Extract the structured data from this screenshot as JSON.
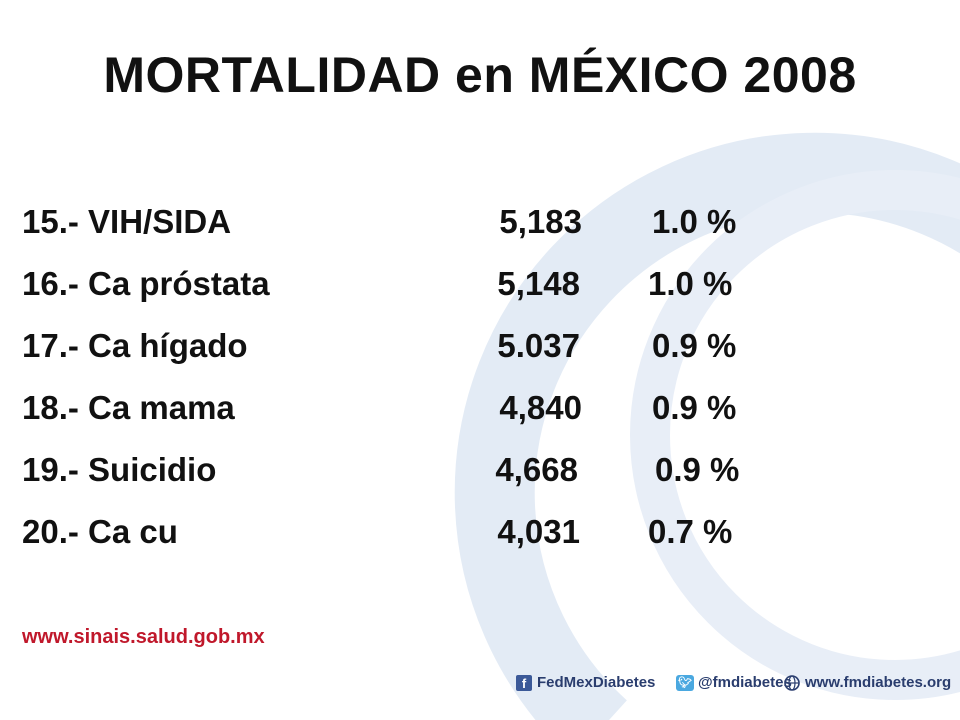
{
  "title": "MORTALIDAD en MÉXICO 2008",
  "rows": [
    {
      "cause": "15.- VIH/SIDA",
      "deaths": "5,183",
      "pct": "1.0 %"
    },
    {
      "cause": "16.- Ca próstata",
      "deaths": "5,148",
      "pct": "1.0 %"
    },
    {
      "cause": "17.- Ca hígado",
      "deaths": "5.037",
      "pct": "0.9 %"
    },
    {
      "cause": "18.- Ca mama",
      "deaths": "4,840",
      "pct": "0.9 %"
    },
    {
      "cause": "19.- Suicidio",
      "deaths": "4,668",
      "pct": "0.9 %"
    },
    {
      "cause": "20.- Ca cu",
      "deaths": "4,031",
      "pct": "0.7 %"
    }
  ],
  "source": "www.sinais.salud.gob.mx",
  "footer": {
    "facebook": "FedMexDiabetes",
    "twitter": "@fmdiabetes",
    "website": "www.fmdiabetes.org"
  },
  "colors": {
    "text": "#111111",
    "source": "#c0182b",
    "footer": "#2a3d6e",
    "ring": "#dfe8f3"
  }
}
